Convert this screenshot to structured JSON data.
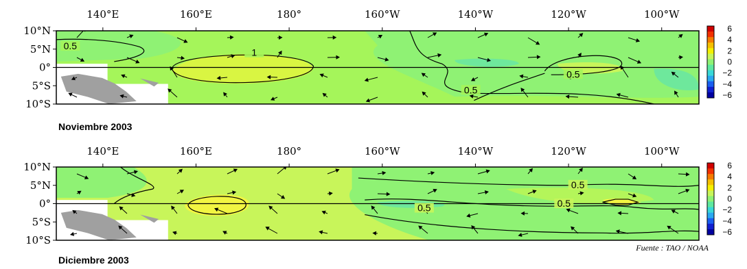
{
  "chart_data": [
    {
      "type": "heatmap",
      "title": "Noviembre 2003",
      "x_ticks": [
        "140°E",
        "160°E",
        "180°",
        "160°W",
        "140°W",
        "120°W",
        "100°W"
      ],
      "y_ticks": [
        "10°N",
        "5°N",
        "0°",
        "5°S",
        "10°S"
      ],
      "lon_range": [
        130,
        268
      ],
      "lat_range": [
        -10,
        10
      ],
      "colorbar": {
        "ticks": [
          "6",
          "4",
          "2",
          "0",
          "−2",
          "−4",
          "−6"
        ],
        "range": [
          -6,
          6
        ]
      },
      "contours": [
        {
          "label": "0.5",
          "label_lon": 133,
          "label_lat": 5.5
        },
        {
          "label": "1",
          "label_lon": 172.5,
          "label_lat": 3.7
        },
        {
          "label": "0.5",
          "label_lon": 241,
          "label_lat": -2.2
        },
        {
          "label": "0.5",
          "label_lon": 219,
          "label_lat": -6.5
        }
      ],
      "colors": {
        "background": "#a5f55a",
        "green": "#8ff274",
        "high": "#d9f542",
        "yellowgreen": "#c8f55a",
        "teal": "#6ee89c",
        "land": "#a0a0a0"
      }
    },
    {
      "type": "heatmap",
      "title": "Diciembre 2003",
      "x_ticks": [
        "140°E",
        "160°E",
        "180°",
        "160°W",
        "140°W",
        "120°W",
        "100°W"
      ],
      "y_ticks": [
        "10°N",
        "5°N",
        "0°",
        "5°S",
        "10°S"
      ],
      "lon_range": [
        130,
        268
      ],
      "lat_range": [
        -10,
        10
      ],
      "colorbar": {
        "ticks": [
          "6",
          "4",
          "2",
          "0",
          "−2",
          "−4",
          "−6"
        ],
        "range": [
          -6,
          6
        ]
      },
      "contours": [
        {
          "label": "0.5",
          "label_lon": 242,
          "label_lat": 4.8
        },
        {
          "label": "0.5",
          "label_lon": 209,
          "label_lat": -1.5
        },
        {
          "label": "0.5",
          "label_lon": 239,
          "label_lat": -0.3
        }
      ],
      "colors": {
        "background": "#c8f55a",
        "green": "#8ff274",
        "high": "#f2f542",
        "yellowgreen": "#b4f55a",
        "teal": "#6ee89c",
        "land": "#a0a0a0"
      }
    }
  ],
  "source": "Fuente : TAO / NOAA"
}
